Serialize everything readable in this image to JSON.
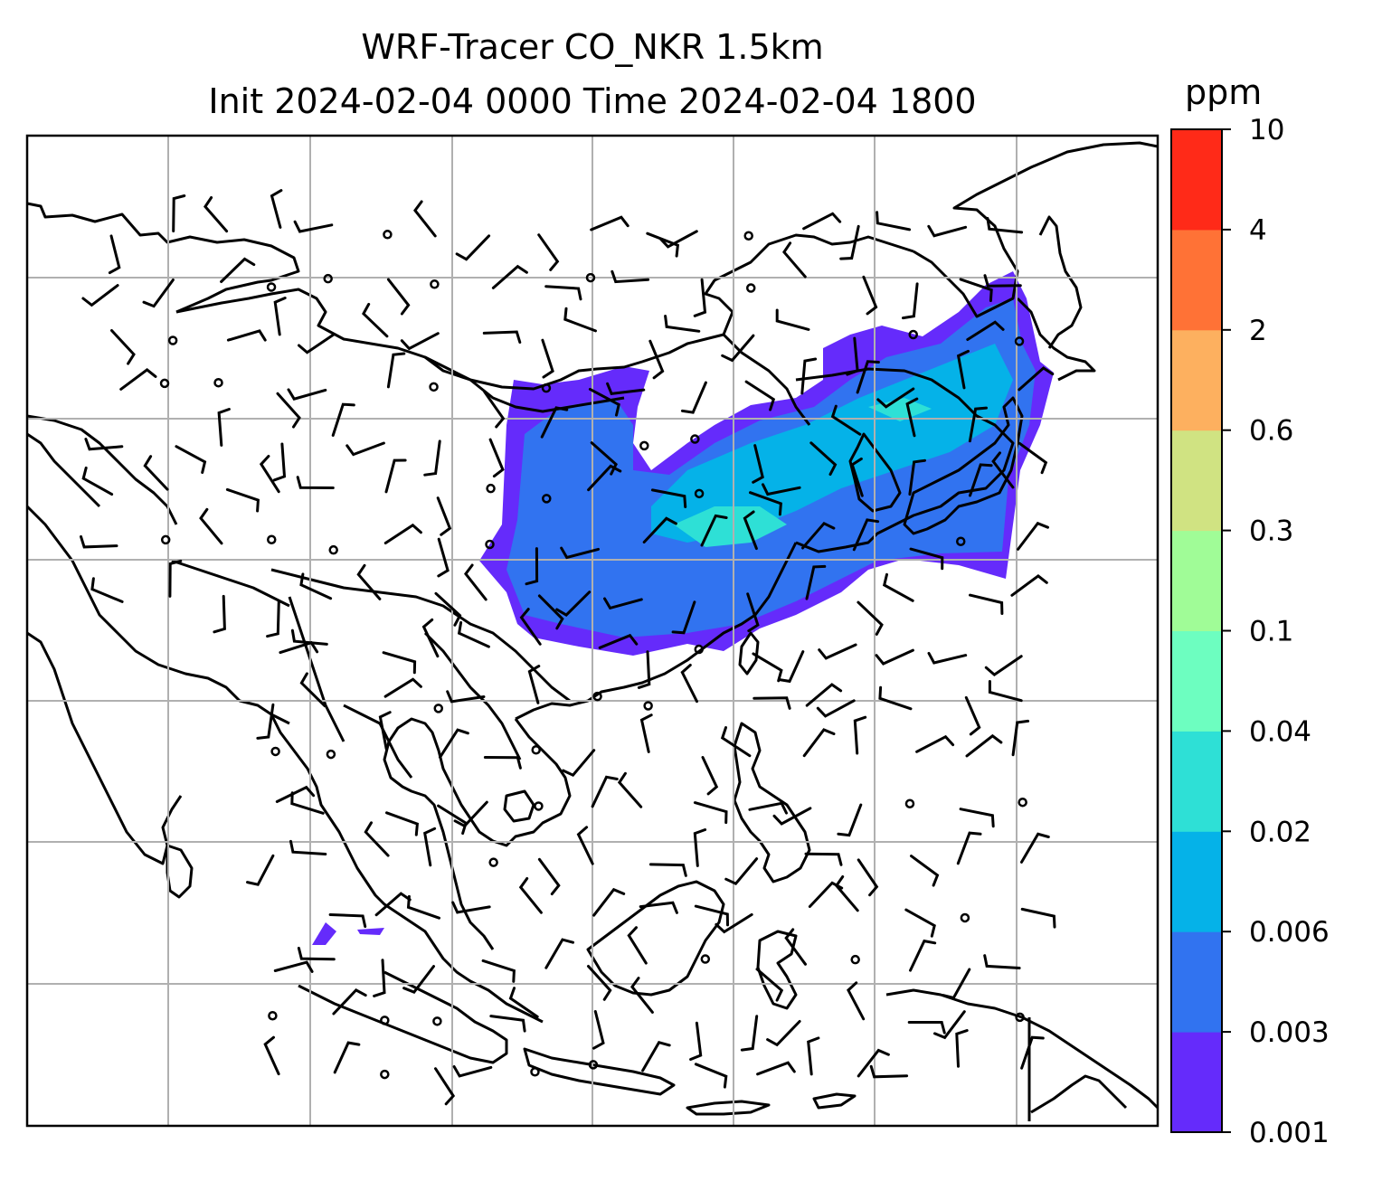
{
  "title": {
    "line1": "WRF-Tracer CO_NKR 1.5km",
    "line2": "Init 2024-02-04 0000 Time 2024-02-04 1800"
  },
  "colorbar": {
    "unit": "ppm",
    "levels": [
      "0.001",
      "0.003",
      "0.006",
      "0.02",
      "0.04",
      "0.1",
      "0.3",
      "0.6",
      "2",
      "4",
      "10"
    ],
    "colors": [
      "#652bfb",
      "#3173f0",
      "#05b2e8",
      "#2ee0d6",
      "#6dfec0",
      "#a0fc97",
      "#d0e382",
      "#fdb05f",
      "#ff7236",
      "#ff2a18"
    ]
  },
  "map": {
    "gridlines": "on",
    "grid_color": "#b0b0b0",
    "coast_color": "#000000",
    "plume_fill": [
      "#652bfb",
      "#3173f0",
      "#05b2e8",
      "#2ee0d6"
    ]
  }
}
